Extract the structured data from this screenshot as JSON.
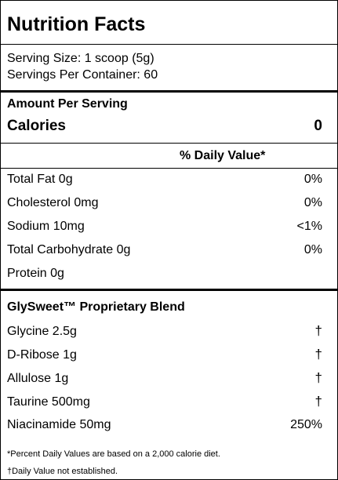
{
  "label": {
    "title": "Nutrition Facts",
    "serving_size": "Serving Size: 1 scoop (5g)",
    "servings_per_container": "Servings Per Container: 60",
    "amount_per_serving": "Amount Per Serving",
    "calories": {
      "label": "Calories",
      "value": "0"
    },
    "daily_value_heading": "% Daily Value*",
    "nutrients": [
      {
        "name": "Total Fat 0g",
        "dv": "0%"
      },
      {
        "name": "Cholesterol 0mg",
        "dv": "0%"
      },
      {
        "name": "Sodium 10mg",
        "dv": "<1%"
      },
      {
        "name": "Total Carbohydrate 0g",
        "dv": "0%"
      },
      {
        "name": "Protein 0g",
        "dv": ""
      }
    ],
    "blend": {
      "heading": "GlySweet™ Proprietary Blend",
      "ingredients": [
        {
          "name": "Glycine 2.5g",
          "dv": "†"
        },
        {
          "name": "D-Ribose 1g",
          "dv": "†"
        },
        {
          "name": "Allulose 1g",
          "dv": "†"
        },
        {
          "name": "Taurine 500mg",
          "dv": "†"
        },
        {
          "name": "Niacinamide 50mg",
          "dv": "250%"
        }
      ]
    },
    "footnotes": [
      "*Percent Daily Values are based on a 2,000 calorie diet.",
      "†Daily Value not established."
    ]
  }
}
